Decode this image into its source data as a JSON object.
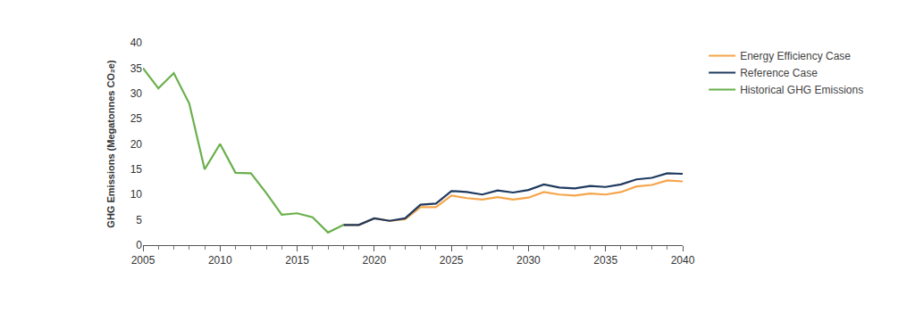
{
  "chart_data": {
    "type": "line",
    "y_label": "GHG Emissions (Megatonnes CO₂e)",
    "x": [
      2005,
      2006,
      2007,
      2008,
      2009,
      2010,
      2011,
      2012,
      2013,
      2014,
      2015,
      2016,
      2017,
      2018,
      2019,
      2020,
      2021,
      2022,
      2023,
      2024,
      2025,
      2026,
      2027,
      2028,
      2029,
      2030,
      2031,
      2032,
      2033,
      2034,
      2035,
      2036,
      2037,
      2038,
      2039,
      2040
    ],
    "series": [
      {
        "name": "Energy Efficiency Case",
        "color": "#f5a54a",
        "values": [
          null,
          null,
          null,
          null,
          null,
          null,
          null,
          null,
          null,
          null,
          null,
          null,
          null,
          4,
          4,
          5.3,
          4.8,
          5.1,
          7.5,
          7.5,
          9.8,
          9.3,
          9,
          9.5,
          9,
          9.4,
          10.5,
          10,
          9.8,
          10.2,
          10,
          10.5,
          11.6,
          11.9,
          12.8,
          12.6
        ]
      },
      {
        "name": "Reference Case",
        "color": "#1f3a5f",
        "values": [
          null,
          null,
          null,
          null,
          null,
          null,
          null,
          null,
          null,
          null,
          null,
          null,
          null,
          4,
          4,
          5.3,
          4.8,
          5.3,
          8,
          8.2,
          10.7,
          10.5,
          10,
          10.8,
          10.4,
          10.9,
          12,
          11.4,
          11.2,
          11.7,
          11.5,
          12,
          13,
          13.3,
          14.2,
          14.1
        ]
      },
      {
        "name": "Historical GHG Emissions",
        "color": "#6ab04c",
        "values": [
          35,
          31,
          34,
          28,
          15,
          20,
          14.3,
          14.2,
          10.3,
          6,
          6.3,
          5.5,
          2.5,
          4,
          null,
          null,
          null,
          null,
          null,
          null,
          null,
          null,
          null,
          null,
          null,
          null,
          null,
          null,
          null,
          null,
          null,
          null,
          null,
          null,
          null,
          null
        ]
      }
    ],
    "xlim": [
      2005,
      2040
    ],
    "xticks": [
      2005,
      2010,
      2015,
      2020,
      2025,
      2030,
      2035,
      2040
    ],
    "ylim": [
      0,
      40
    ],
    "yticks": [
      0,
      5,
      10,
      15,
      20,
      25,
      30,
      35,
      40
    ],
    "grid": false,
    "legend": "right"
  }
}
